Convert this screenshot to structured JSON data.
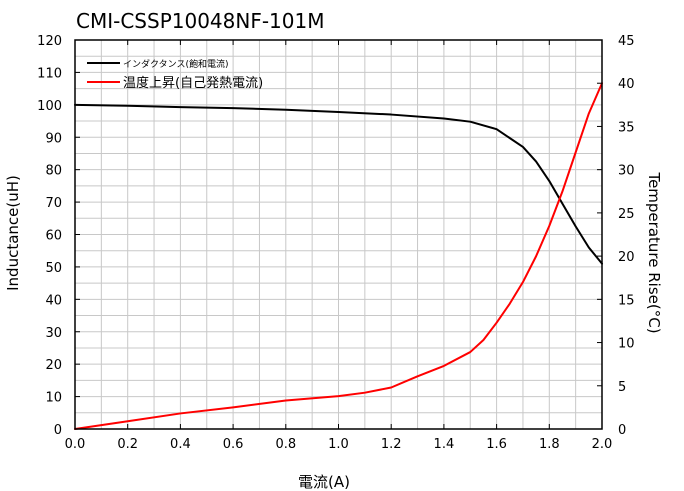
{
  "chart_data": {
    "type": "line",
    "title": "CMI-CSSP10048NF-101M",
    "xlabel": "電流(A)",
    "ylabel_left": "Inductance(uH)",
    "ylabel_right": "Temperature Rise(°C)",
    "xlim": [
      0,
      2.0
    ],
    "ylim_left": [
      0,
      120
    ],
    "ylim_right": [
      0,
      45
    ],
    "x_ticks": [
      "0.0",
      "0.2",
      "0.4",
      "0.6",
      "0.8",
      "1.0",
      "1.2",
      "1.4",
      "1.6",
      "1.8",
      "2.0"
    ],
    "y_left_ticks": [
      "0",
      "10",
      "20",
      "30",
      "40",
      "50",
      "60",
      "70",
      "80",
      "90",
      "100",
      "110",
      "120"
    ],
    "y_right_ticks": [
      "0",
      "5",
      "10",
      "15",
      "20",
      "25",
      "30",
      "35",
      "40",
      "45"
    ],
    "grid": true,
    "legend_position": "top-left",
    "series": [
      {
        "name": "インダクタンス(飽和電流)",
        "axis": "left",
        "color": "#000000",
        "x": [
          0.0,
          0.2,
          0.4,
          0.6,
          0.8,
          1.0,
          1.2,
          1.4,
          1.5,
          1.6,
          1.7,
          1.75,
          1.8,
          1.85,
          1.9,
          1.95,
          2.0
        ],
        "y": [
          100,
          99.7,
          99.3,
          99,
          98.5,
          97.8,
          97,
          95.8,
          94.8,
          92.5,
          87,
          82.5,
          76.5,
          69.5,
          62.5,
          56,
          51
        ]
      },
      {
        "name": "温度上昇(自己発熱電流)",
        "axis": "right",
        "color": "#ff0000",
        "x": [
          0.0,
          0.2,
          0.4,
          0.6,
          0.8,
          1.0,
          1.1,
          1.2,
          1.3,
          1.4,
          1.5,
          1.55,
          1.6,
          1.65,
          1.7,
          1.75,
          1.8,
          1.85,
          1.9,
          1.95,
          2.0
        ],
        "y": [
          0,
          0.9,
          1.8,
          2.5,
          3.3,
          3.8,
          4.2,
          4.8,
          6.1,
          7.3,
          8.9,
          10.3,
          12.3,
          14.5,
          17,
          20,
          23.5,
          27.5,
          32,
          36.5,
          40
        ]
      }
    ]
  }
}
